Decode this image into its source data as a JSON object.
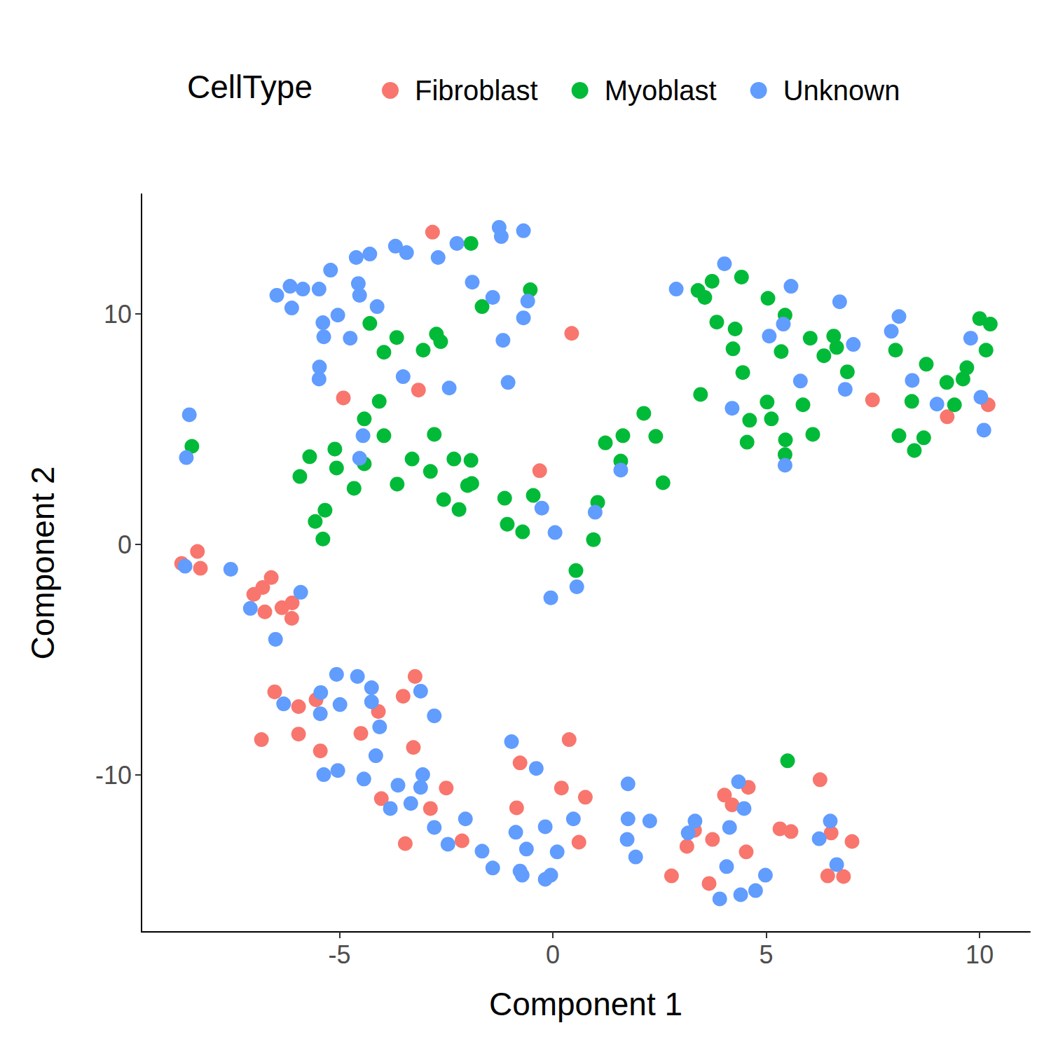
{
  "chart_data": {
    "type": "scatter",
    "xlabel": "Component 1",
    "ylabel": "Component 2",
    "legend_title": "CellType",
    "xlim": [
      -9.64,
      11.18
    ],
    "ylim": [
      -16.8,
      15.2
    ],
    "xticks": [
      -5,
      0,
      5,
      10
    ],
    "yticks": [
      -10,
      0,
      10
    ],
    "grid": false,
    "legend": "top",
    "marker": "circle",
    "series": [
      {
        "name": "Fibroblast",
        "color": "#F8766D",
        "x": [
          -2.82,
          0.44,
          -4.91,
          -3.15,
          -0.31,
          7.49,
          9.24,
          10.2,
          -8.7,
          -8.33,
          -8.26,
          -6.6,
          -6.8,
          -7.01,
          -6.35,
          -6.75,
          -6.11,
          -6.12,
          -6.52,
          -6.83,
          -5.96,
          -5.55,
          -5.96,
          -5.45,
          -4.5,
          -4.09,
          -3.23,
          -3.51,
          -3.27,
          -4.02,
          -2.87,
          -2.5,
          -3.46,
          -2.13,
          -0.77,
          -0.85,
          0.38,
          0.2,
          0.76,
          0.61,
          2.78,
          3.14,
          3.32,
          3.74,
          3.66,
          4.02,
          4.2,
          4.58,
          4.53,
          5.32,
          5.58,
          6.26,
          6.52,
          6.44,
          6.81,
          7.01
        ],
        "values": [
          13.55,
          9.16,
          6.36,
          6.7,
          3.2,
          6.27,
          5.54,
          6.06,
          -0.82,
          -0.3,
          -1.03,
          -1.43,
          -1.86,
          -2.16,
          -2.74,
          -2.92,
          -2.53,
          -3.2,
          -6.39,
          -8.46,
          -7.03,
          -6.73,
          -8.22,
          -8.95,
          -8.19,
          -7.24,
          -5.72,
          -6.58,
          -8.8,
          -11.02,
          -11.45,
          -10.56,
          -12.97,
          -12.85,
          -9.47,
          -11.42,
          -8.46,
          -10.56,
          -10.96,
          -12.91,
          -14.37,
          -13.09,
          -12.39,
          -12.79,
          -14.7,
          -10.87,
          -11.29,
          -10.53,
          -13.33,
          -12.33,
          -12.45,
          -10.2,
          -12.51,
          -14.37,
          -14.4,
          -12.88
        ]
      },
      {
        "name": "Myoblast",
        "color": "#00BA38",
        "x": [
          -1.92,
          -0.53,
          -1.66,
          -4.29,
          -3.66,
          -3.96,
          -3.04,
          -2.73,
          -2.63,
          -4.42,
          -4.07,
          -3.96,
          -8.46,
          -5.7,
          -5.93,
          -5.11,
          -5.07,
          -4.66,
          -4.42,
          -3.65,
          -3.3,
          -2.87,
          -2.78,
          -2.32,
          -1.92,
          -2.0,
          -1.9,
          -2.56,
          -2.2,
          -5.34,
          -5.57,
          -5.39,
          -1.13,
          -1.07,
          -0.71,
          -0.46,
          0.54,
          0.95,
          1.05,
          1.23,
          1.59,
          1.64,
          2.13,
          2.41,
          2.58,
          3.46,
          3.4,
          3.56,
          3.73,
          4.42,
          3.84,
          4.27,
          4.22,
          4.45,
          4.61,
          4.55,
          5.04,
          5.44,
          5.35,
          5.02,
          5.12,
          5.45,
          5.44,
          5.86,
          6.03,
          6.09,
          6.35,
          6.58,
          6.65,
          6.9,
          8.03,
          8.41,
          8.11,
          8.47,
          8.69,
          8.75,
          9.23,
          9.41,
          9.61,
          9.7,
          10.0,
          10.25,
          10.15,
          5.5
        ],
        "values": [
          13.06,
          11.05,
          10.32,
          9.59,
          8.98,
          8.34,
          8.43,
          9.13,
          8.8,
          5.45,
          6.21,
          4.72,
          4.26,
          3.81,
          2.95,
          4.14,
          3.32,
          2.44,
          3.5,
          2.62,
          3.71,
          3.17,
          4.78,
          3.71,
          3.65,
          2.56,
          2.65,
          1.95,
          1.52,
          1.49,
          1.0,
          0.24,
          2.01,
          0.88,
          0.55,
          2.13,
          -1.13,
          0.21,
          1.83,
          4.41,
          3.62,
          4.72,
          5.69,
          4.69,
          2.68,
          6.51,
          11.02,
          10.72,
          11.42,
          11.6,
          9.65,
          9.35,
          8.49,
          7.46,
          5.39,
          4.44,
          10.68,
          9.95,
          8.37,
          6.18,
          5.45,
          4.54,
          3.9,
          6.06,
          8.95,
          4.78,
          8.19,
          9.04,
          8.55,
          7.49,
          8.43,
          6.21,
          4.72,
          4.08,
          4.63,
          7.82,
          7.03,
          6.06,
          7.18,
          7.67,
          9.8,
          9.56,
          8.43,
          -9.38
        ]
      },
      {
        "name": "Unknown",
        "color": "#619CFF",
        "x": [
          -1.26,
          -1.21,
          -0.69,
          -2.25,
          -2.69,
          -3.69,
          -3.43,
          -4.61,
          -4.29,
          -5.21,
          -6.47,
          -6.16,
          -5.86,
          -5.48,
          -6.12,
          -4.56,
          -4.53,
          -4.12,
          -5.04,
          -5.39,
          -5.37,
          -4.75,
          -1.89,
          -1.41,
          -0.59,
          -0.69,
          -1.17,
          -1.05,
          -2.43,
          -3.51,
          -5.47,
          -5.48,
          -8.52,
          -8.59,
          -4.45,
          -4.53,
          -0.26,
          0.05,
          -0.05,
          0.56,
          0.99,
          1.59,
          2.89,
          4.02,
          5.58,
          6.72,
          5.4,
          5.07,
          7.04,
          5.8,
          6.85,
          4.2,
          5.44,
          7.93,
          8.11,
          9.79,
          8.42,
          9.0,
          10.03,
          10.1,
          -8.62,
          -7.55,
          -5.91,
          -7.09,
          -6.5,
          -5.07,
          -4.58,
          -4.25,
          -4.25,
          -5.44,
          -5.45,
          -4.99,
          -6.31,
          -3.1,
          -2.78,
          -4.06,
          -4.15,
          -5.37,
          -5.04,
          -4.43,
          -3.63,
          -3.05,
          -3.1,
          -3.33,
          -3.81,
          -2.78,
          -2.05,
          -2.46,
          -1.66,
          -1.41,
          -0.97,
          -0.39,
          -0.87,
          -0.62,
          -0.77,
          -0.72,
          -0.18,
          -0.05,
          -0.18,
          0.1,
          0.48,
          1.76,
          1.76,
          1.74,
          1.94,
          2.27,
          3.33,
          3.17,
          4.35,
          4.48,
          4.14,
          4.07,
          3.91,
          4.4,
          4.75,
          4.98,
          6.5,
          6.24,
          6.65
        ],
        "values": [
          13.76,
          13.36,
          13.61,
          13.06,
          12.45,
          12.94,
          12.66,
          12.45,
          12.6,
          11.9,
          10.81,
          11.2,
          11.08,
          11.08,
          10.26,
          11.32,
          10.81,
          10.32,
          9.95,
          9.62,
          9.01,
          8.95,
          11.38,
          10.72,
          10.56,
          9.83,
          8.86,
          7.03,
          6.79,
          7.28,
          7.7,
          7.18,
          5.63,
          3.77,
          4.72,
          3.74,
          1.58,
          0.52,
          -2.31,
          -1.83,
          1.4,
          3.23,
          11.08,
          12.18,
          11.2,
          10.53,
          9.56,
          9.04,
          8.68,
          7.09,
          6.73,
          5.91,
          3.44,
          9.25,
          9.89,
          8.95,
          7.12,
          6.09,
          6.39,
          4.96,
          -0.94,
          -1.07,
          -2.07,
          -2.77,
          -4.11,
          -5.63,
          -5.72,
          -6.21,
          -6.82,
          -6.42,
          -7.34,
          -6.94,
          -6.91,
          -6.36,
          -7.43,
          -7.91,
          -9.16,
          -9.98,
          -9.8,
          -10.17,
          -10.44,
          -9.98,
          -10.53,
          -11.23,
          -11.45,
          -12.27,
          -11.9,
          -13.0,
          -13.3,
          -14.03,
          -8.55,
          -9.71,
          -12.48,
          -13.21,
          -14.16,
          -14.34,
          -12.24,
          -14.34,
          -14.52,
          -13.33,
          -11.9,
          -10.38,
          -11.9,
          -12.79,
          -13.55,
          -11.99,
          -11.99,
          -12.51,
          -10.29,
          -11.45,
          -12.27,
          -13.97,
          -15.37,
          -15.19,
          -15.01,
          -14.34,
          -11.99,
          -12.76,
          -13.88
        ]
      }
    ]
  }
}
